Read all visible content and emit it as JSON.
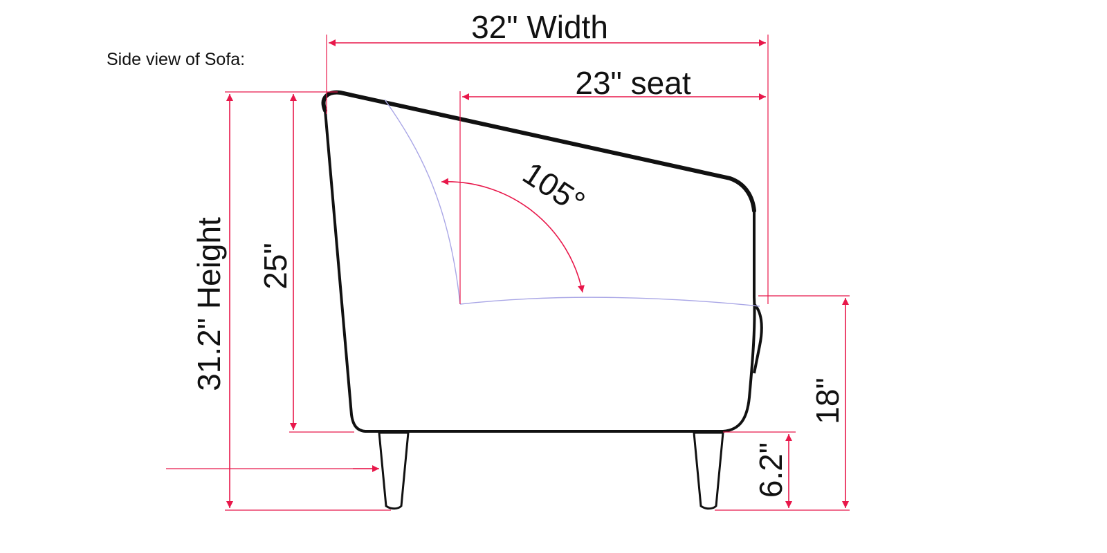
{
  "caption": "Side view of Sofa:",
  "dimensions": {
    "width_label": "32\" Width",
    "seat_label": "23\" seat",
    "height_label": "31.2\" Height",
    "back_height_label": "25\"",
    "seat_height_label": "18\"",
    "leg_height_label": "6.2\"",
    "angle_label": "105°"
  },
  "colors": {
    "dimension": "#e8174a",
    "outline": "#111111",
    "guide": "#a9a6e6"
  }
}
